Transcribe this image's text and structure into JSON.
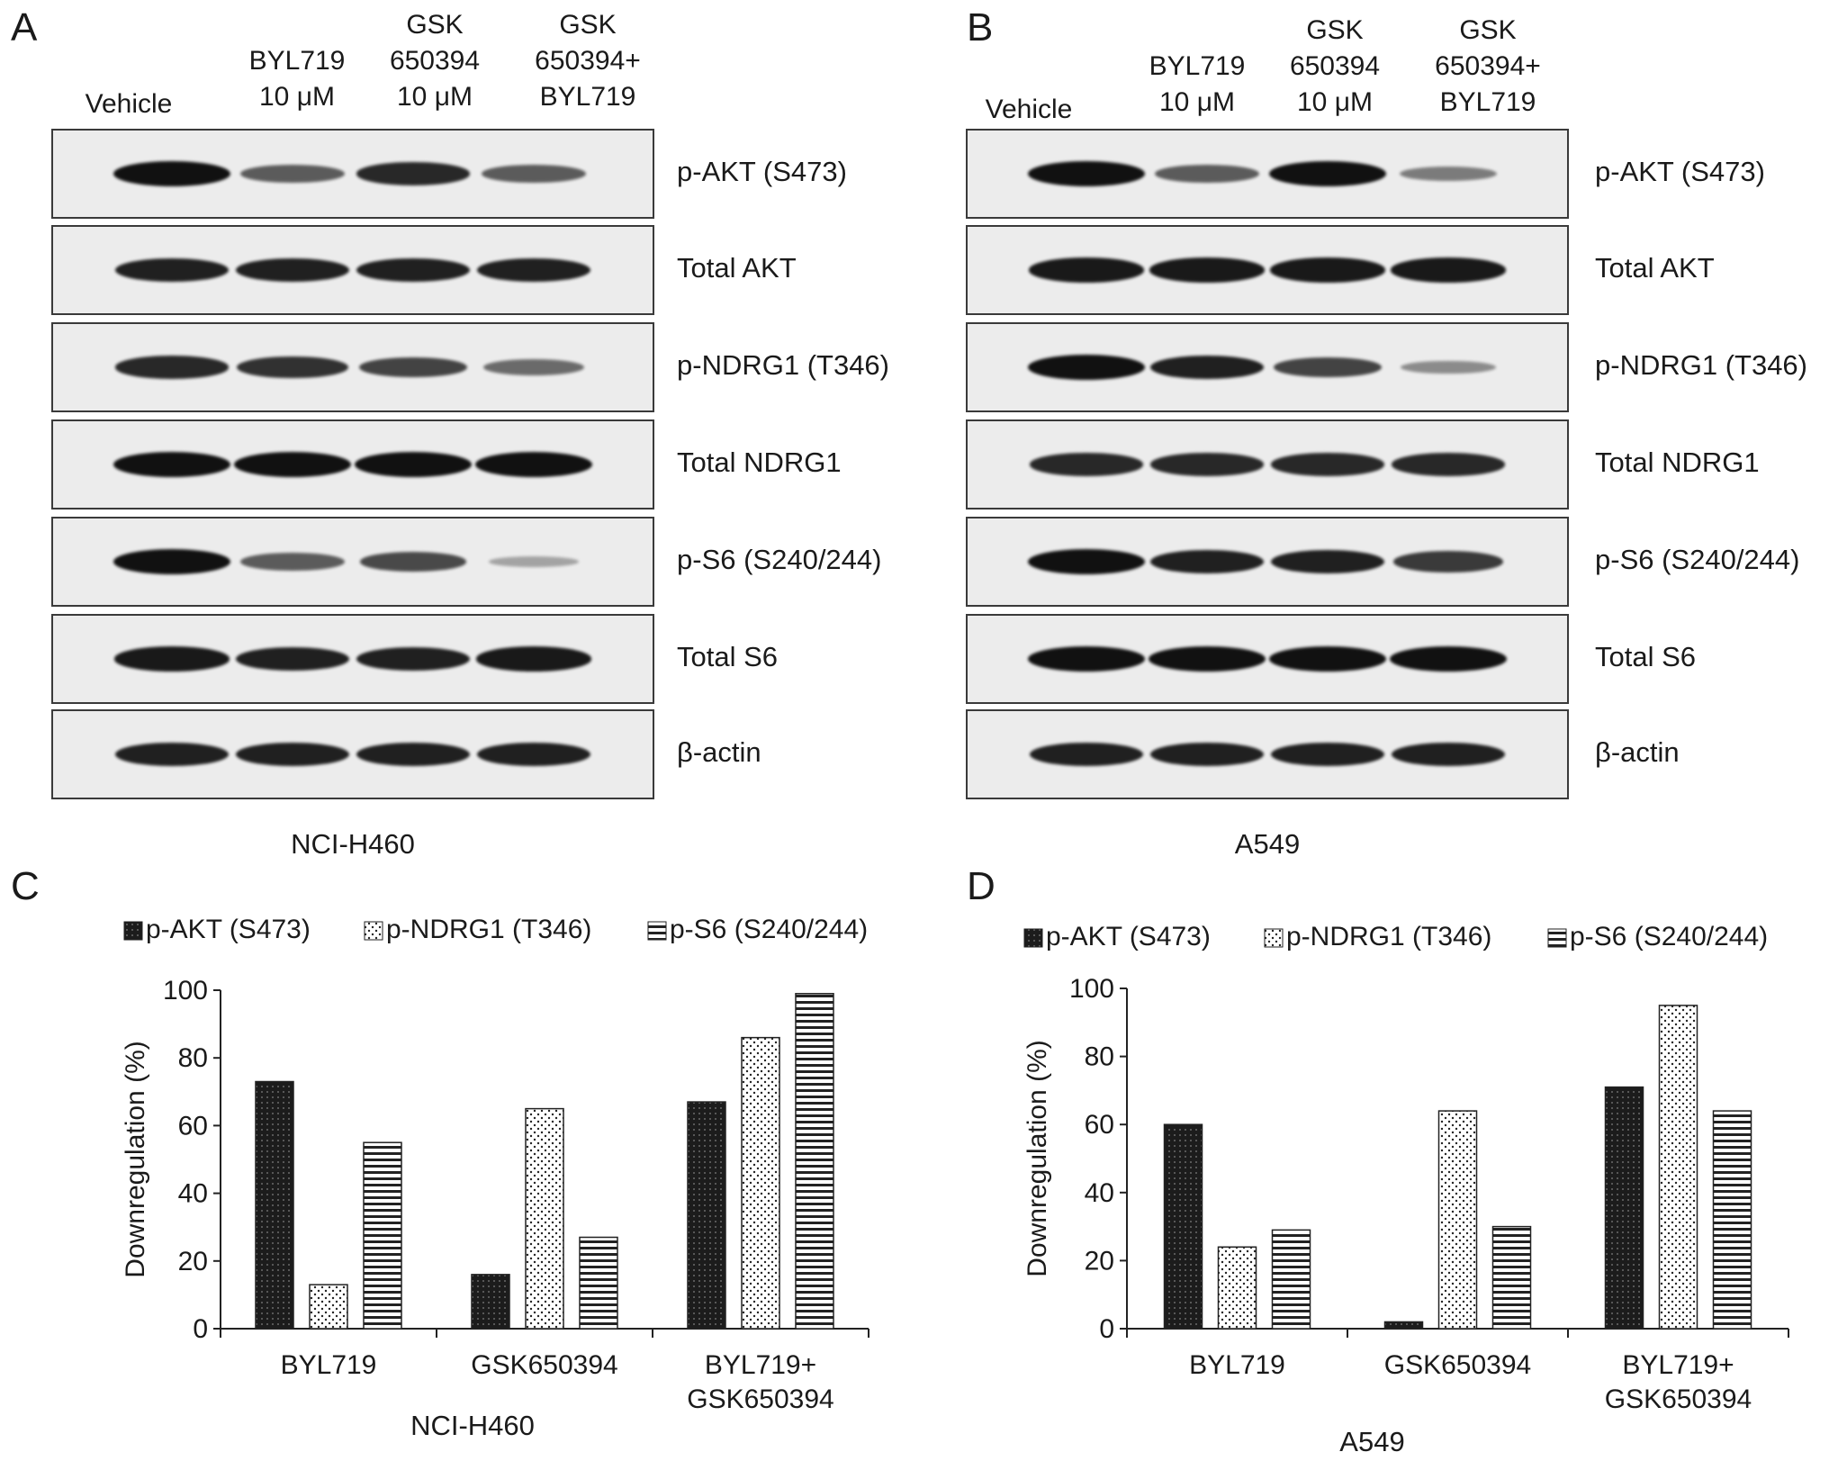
{
  "panels": {
    "A": "A",
    "B": "B",
    "C": "C",
    "D": "D"
  },
  "blots": [
    {
      "cell_line": "NCI-H460",
      "lanes": [
        "Vehicle",
        "BYL719\n10 μM",
        "GSK\n650394\n10 μM",
        "GSK\n650394+\nBYL719"
      ],
      "rows": [
        {
          "label": "p-AKT (S473)",
          "intensity": [
            1.0,
            0.55,
            0.85,
            0.55
          ]
        },
        {
          "label": "Total AKT",
          "intensity": [
            0.9,
            0.9,
            0.9,
            0.9
          ]
        },
        {
          "label": "p-NDRG1 (T346)",
          "intensity": [
            0.85,
            0.8,
            0.7,
            0.45
          ]
        },
        {
          "label": "Total NDRG1",
          "intensity": [
            1.0,
            1.0,
            1.0,
            1.0
          ]
        },
        {
          "label": "p-S6 (S240/244)",
          "intensity": [
            1.0,
            0.55,
            0.65,
            0.1
          ]
        },
        {
          "label": "Total S6",
          "intensity": [
            0.95,
            0.9,
            0.9,
            0.95
          ]
        },
        {
          "label": "β-actin",
          "intensity": [
            0.9,
            0.9,
            0.9,
            0.9
          ]
        }
      ]
    },
    {
      "cell_line": "A549",
      "lanes": [
        "Vehicle",
        "BYL719\n10 μM",
        "GSK\n650394\n10 μM",
        "GSK\n650394+\nBYL719"
      ],
      "rows": [
        {
          "label": "p-AKT (S473)",
          "intensity": [
            1.0,
            0.55,
            1.0,
            0.35
          ]
        },
        {
          "label": "Total AKT",
          "intensity": [
            0.95,
            0.95,
            0.95,
            0.95
          ]
        },
        {
          "label": "p-NDRG1 (T346)",
          "intensity": [
            1.0,
            0.9,
            0.7,
            0.25
          ]
        },
        {
          "label": "Total NDRG1",
          "intensity": [
            0.85,
            0.85,
            0.85,
            0.85
          ]
        },
        {
          "label": "p-S6 (S240/244)",
          "intensity": [
            1.0,
            0.9,
            0.9,
            0.75
          ]
        },
        {
          "label": "Total S6",
          "intensity": [
            1.0,
            1.0,
            1.0,
            1.0
          ]
        },
        {
          "label": "β-actin",
          "intensity": [
            0.9,
            0.9,
            0.9,
            0.9
          ]
        }
      ]
    }
  ],
  "chart_data": [
    {
      "type": "bar",
      "title": "",
      "xlabel": "NCI-H460",
      "ylabel": "Downregulation (%)",
      "ylim": [
        0,
        100
      ],
      "yticks": [
        "0",
        "20",
        "40",
        "60",
        "80",
        "100"
      ],
      "categories": [
        "BYL719",
        "GSK650394",
        "BYL719+\nGSK650394"
      ],
      "series": [
        {
          "name": "p-AKT (S473)",
          "values": [
            73,
            16,
            67
          ],
          "pattern": "dark"
        },
        {
          "name": "p-NDRG1 (T346)",
          "values": [
            13,
            65,
            86
          ],
          "pattern": "dots"
        },
        {
          "name": "p-S6 (S240/244)",
          "values": [
            55,
            27,
            99
          ],
          "pattern": "hstripes"
        }
      ],
      "legend": "top"
    },
    {
      "type": "bar",
      "title": "",
      "xlabel": "A549",
      "ylabel": "Downregulation (%)",
      "ylim": [
        0,
        100
      ],
      "yticks": [
        "0",
        "20",
        "40",
        "60",
        "80",
        "100"
      ],
      "categories": [
        "BYL719",
        "GSK650394",
        "BYL719+\nGSK650394"
      ],
      "series": [
        {
          "name": "p-AKT (S473)",
          "values": [
            60,
            2,
            71
          ],
          "pattern": "dark"
        },
        {
          "name": "p-NDRG1 (T346)",
          "values": [
            24,
            64,
            95
          ],
          "pattern": "dots"
        },
        {
          "name": "p-S6 (S240/244)",
          "values": [
            29,
            30,
            64
          ],
          "pattern": "hstripes"
        }
      ],
      "legend": "top"
    }
  ]
}
